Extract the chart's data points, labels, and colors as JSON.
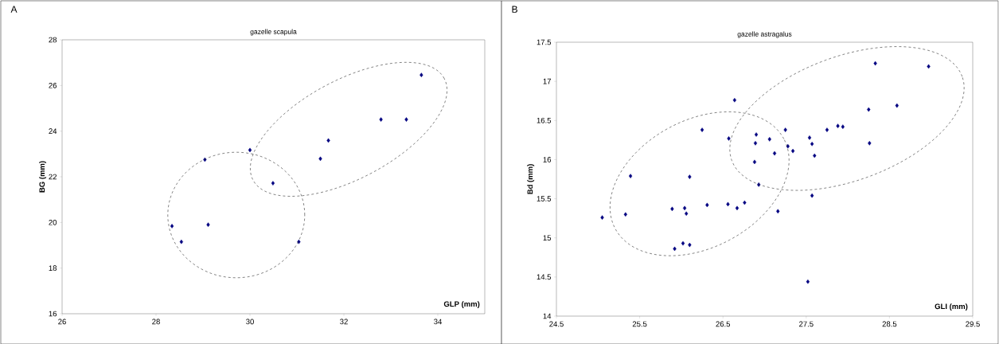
{
  "chart_data": [
    {
      "type": "scatter",
      "title": "gazelle scapula",
      "xlabel": "GLP (mm)",
      "ylabel": "BG (mm)",
      "annotations": [
        "A"
      ],
      "x": [
        28.34,
        28.54,
        29.04,
        29.11,
        30.0,
        30.49,
        31.04,
        31.5,
        31.67,
        32.79,
        33.33,
        33.65
      ],
      "series": [
        {
          "color": "#000080",
          "values": [
            19.84,
            19.15,
            22.75,
            19.9,
            23.17,
            21.72,
            19.15,
            22.79,
            23.59,
            24.51,
            24.51,
            26.46
          ]
        }
      ],
      "xlim": [
        26,
        35
      ],
      "ylim": [
        16,
        28
      ],
      "xticks": [
        26,
        28,
        30,
        32,
        34
      ],
      "yticks": [
        16,
        18,
        20,
        22,
        24,
        26,
        28
      ],
      "marker": "diamond",
      "grid": false
    },
    {
      "type": "scatter",
      "title": "gazelle astragalus",
      "xlabel": "GLI (mm)",
      "ylabel": "Bd (mm)",
      "annotations": [
        "B"
      ],
      "x": [
        25.05,
        25.33,
        25.39,
        25.89,
        25.92,
        26.04,
        26.02,
        26.06,
        26.1,
        26.1,
        26.25,
        26.31,
        26.56,
        26.57,
        26.64,
        26.67,
        26.76,
        26.88,
        26.89,
        26.9,
        26.93,
        27.06,
        27.12,
        27.16,
        27.25,
        27.28,
        27.34,
        27.52,
        27.54,
        27.57,
        27.57,
        27.6,
        27.75,
        27.88,
        27.94,
        28.25,
        28.26,
        28.33,
        28.59,
        28.97
      ],
      "series": [
        {
          "color": "#000080",
          "values": [
            15.26,
            15.3,
            15.79,
            15.37,
            14.86,
            15.38,
            14.93,
            15.31,
            14.91,
            15.78,
            16.38,
            15.42,
            15.43,
            16.27,
            16.76,
            15.38,
            15.45,
            15.97,
            16.21,
            16.32,
            15.68,
            16.26,
            16.08,
            15.34,
            16.38,
            16.17,
            16.11,
            14.44,
            16.28,
            15.54,
            16.2,
            16.05,
            16.38,
            16.43,
            16.42,
            16.64,
            16.21,
            17.23,
            16.69,
            17.19
          ]
        }
      ],
      "xlim": [
        24.5,
        29.5
      ],
      "ylim": [
        14,
        17.5
      ],
      "xticks": [
        24.5,
        25.5,
        26.5,
        27.5,
        28.5,
        29.5
      ],
      "yticks": [
        14,
        14.5,
        15,
        15.5,
        16,
        16.5,
        17,
        17.5
      ],
      "marker": "diamond",
      "grid": false
    }
  ]
}
